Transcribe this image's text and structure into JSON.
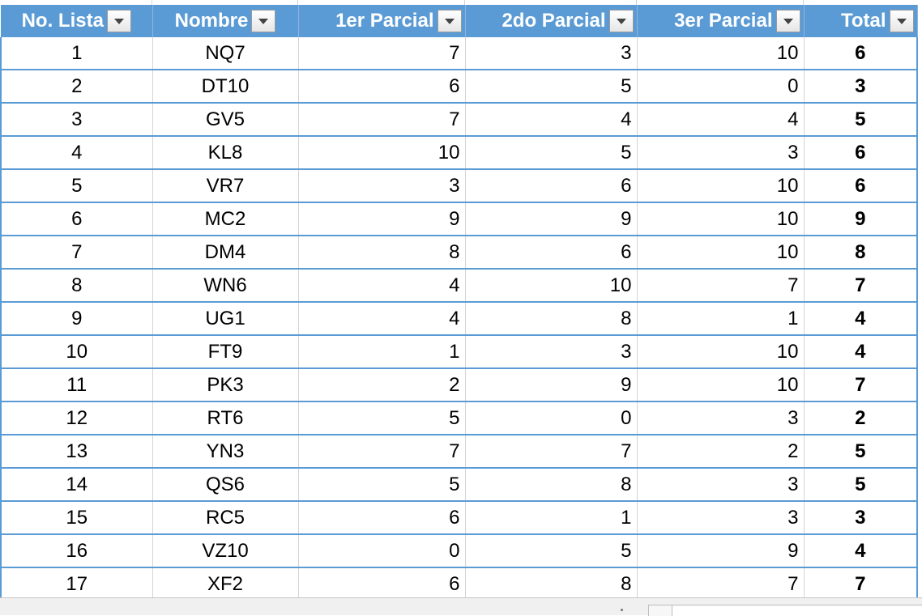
{
  "table": {
    "headers": [
      "No. Lista",
      "Nombre",
      "1er Parcial",
      "2do Parcial",
      "3er Parcial",
      "Total"
    ],
    "rows": [
      [
        "1",
        "NQ7",
        "7",
        "3",
        "10",
        "6"
      ],
      [
        "2",
        "DT10",
        "6",
        "5",
        "0",
        "3"
      ],
      [
        "3",
        "GV5",
        "7",
        "4",
        "4",
        "5"
      ],
      [
        "4",
        "KL8",
        "10",
        "5",
        "3",
        "6"
      ],
      [
        "5",
        "VR7",
        "3",
        "6",
        "10",
        "6"
      ],
      [
        "6",
        "MC2",
        "9",
        "9",
        "10",
        "9"
      ],
      [
        "7",
        "DM4",
        "8",
        "6",
        "10",
        "8"
      ],
      [
        "8",
        "WN6",
        "4",
        "10",
        "7",
        "7"
      ],
      [
        "9",
        "UG1",
        "4",
        "8",
        "1",
        "4"
      ],
      [
        "10",
        "FT9",
        "1",
        "3",
        "10",
        "4"
      ],
      [
        "11",
        "PK3",
        "2",
        "9",
        "10",
        "7"
      ],
      [
        "12",
        "RT6",
        "5",
        "0",
        "3",
        "2"
      ],
      [
        "13",
        "YN3",
        "7",
        "7",
        "2",
        "5"
      ],
      [
        "14",
        "QS6",
        "5",
        "8",
        "3",
        "5"
      ],
      [
        "15",
        "RC5",
        "6",
        "1",
        "3",
        "3"
      ],
      [
        "16",
        "VZ10",
        "0",
        "5",
        "9",
        "4"
      ],
      [
        "17",
        "XF2",
        "6",
        "8",
        "7",
        "7"
      ]
    ]
  },
  "icons": {
    "filter": "chevron-down-icon"
  },
  "colors": {
    "header_bg": "#5b9bd5",
    "header_text": "#ffffff",
    "row_border": "#5b9bd5"
  }
}
